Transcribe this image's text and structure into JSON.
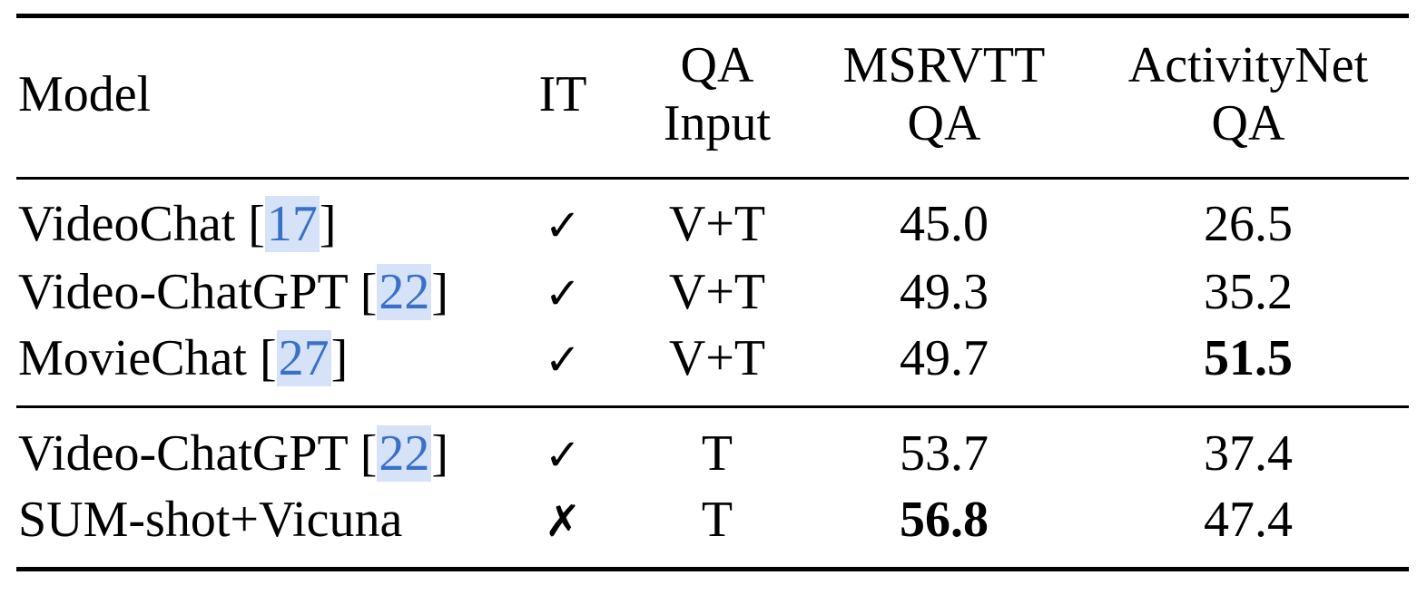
{
  "table": {
    "headers": {
      "model": "Model",
      "it": "IT",
      "qa_input_line1": "QA",
      "qa_input_line2": "Input",
      "msrvtt_line1": "MSRVTT",
      "msrvtt_line2": "QA",
      "activitynet_line1": "ActivityNet",
      "activitynet_line2": "QA"
    },
    "rows": [
      {
        "model": "VideoChat",
        "cite_open": "[",
        "cite": "17",
        "cite_close": "]",
        "it": "✓",
        "qa_input": "V+T",
        "msrvtt": "45.0",
        "activitynet": "26.5"
      },
      {
        "model": "Video-ChatGPT",
        "cite_open": "[",
        "cite": "22",
        "cite_close": "]",
        "it": "✓",
        "qa_input": "V+T",
        "msrvtt": "49.3",
        "activitynet": "35.2"
      },
      {
        "model": "MovieChat",
        "cite_open": "[",
        "cite": "27",
        "cite_close": "]",
        "it": "✓",
        "qa_input": "V+T",
        "msrvtt": "49.7",
        "activitynet": "51.5"
      },
      {
        "model": "Video-ChatGPT",
        "cite_open": "[",
        "cite": "22",
        "cite_close": "]",
        "it": "✓",
        "qa_input": "T",
        "msrvtt": "53.7",
        "activitynet": "37.4"
      },
      {
        "model": "SUM-shot+Vicuna",
        "it": "✗",
        "qa_input": "T",
        "msrvtt": "56.8",
        "activitynet": "47.4"
      }
    ],
    "bold_cells": [
      "rows.2.activitynet",
      "rows.4.msrvtt"
    ],
    "colors": {
      "citation_text": "#3a70c8",
      "citation_highlight": "#d6e2f7"
    }
  }
}
